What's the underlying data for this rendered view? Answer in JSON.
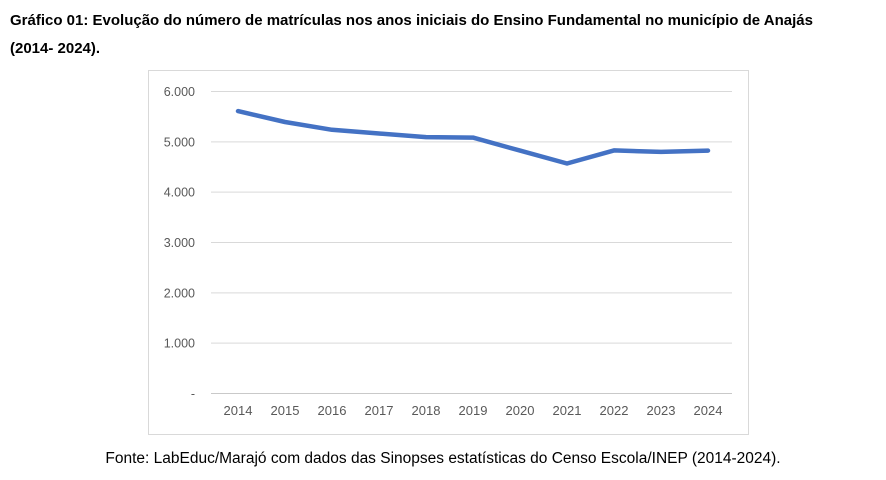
{
  "page": {
    "title_line1": "Gráfico 01: Evolução do número de matrículas nos anos iniciais do Ensino Fundamental no município de Anajás",
    "title_line2": "(2014- 2024).",
    "source": "Fonte: LabEduc/Marajó com dados das Sinopses estatísticas do Censo Escola/INEP (2014-2024)."
  },
  "chart_data": {
    "type": "line",
    "title": "Gráfico 01: Evolução do número de matrículas nos anos iniciais do Ensino Fundamental no município de Anajás (2014- 2024).",
    "source_note": "Fonte: LabEduc/Marajó com dados das Sinopses estatísticas do Censo Escola/INEP (2014-2024).",
    "categories": [
      "2014",
      "2015",
      "2016",
      "2017",
      "2018",
      "2019",
      "2020",
      "2021",
      "2022",
      "2023",
      "2024"
    ],
    "values": [
      5610,
      5395,
      5240,
      5165,
      5095,
      5085,
      4825,
      4570,
      4830,
      4800,
      4825
    ],
    "xlabel": "",
    "ylabel": "",
    "ylim": [
      0,
      6000
    ],
    "yticks": [
      {
        "value": 6000,
        "label": "6.000"
      },
      {
        "value": 5000,
        "label": "5.000"
      },
      {
        "value": 4000,
        "label": "4.000"
      },
      {
        "value": 3000,
        "label": "3.000"
      },
      {
        "value": 2000,
        "label": "2.000"
      },
      {
        "value": 1000,
        "label": "1.000"
      },
      {
        "value": 0,
        "label": "-"
      }
    ],
    "grid": true,
    "legend": false,
    "colors": {
      "line": "#4472C4",
      "gridline": "#d9d9d9",
      "axis_line": "#c9c9c9",
      "tick_text": "#595959",
      "chart_border": "#d9d9d9"
    }
  }
}
